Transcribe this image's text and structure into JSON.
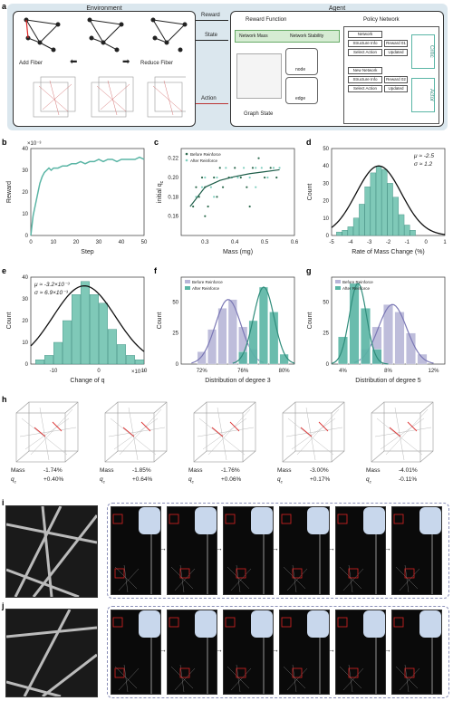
{
  "panel_labels": [
    "a",
    "b",
    "c",
    "d",
    "e",
    "f",
    "g",
    "h",
    "i",
    "j"
  ],
  "env": {
    "title": "Environment",
    "add": "Add Fiber",
    "reduce": "Reduce Fiber"
  },
  "agent": {
    "title": "Agent",
    "reward_fn": "Reward Function",
    "policy": "Policy Network",
    "net_mass": "Network Mass",
    "net_stab": "Network Stability",
    "graph_state": "Graph State",
    "node": "node",
    "edge": "edge",
    "critic": "Critic",
    "actor": "Actor",
    "chips": [
      "Network",
      "Structure Info",
      "Reward 01",
      "Select Action",
      "Updated",
      "New Network",
      "Structure Info",
      "Reward 02",
      "Select Action",
      "Updated"
    ]
  },
  "arrows": {
    "reward": "Reward",
    "state": "State",
    "action": "Action"
  },
  "chart_data": [
    {
      "type": "line",
      "panel": "b",
      "xlabel": "Step",
      "ylabel": "Reward",
      "scale_note": "×10⁻³",
      "xlim": [
        0,
        50
      ],
      "ylim": [
        0,
        40
      ],
      "xticks": [
        "0",
        "10",
        "20",
        "30",
        "40",
        "50"
      ],
      "yticks": [
        "0",
        "10",
        "20",
        "30",
        "40"
      ],
      "x": [
        0,
        1,
        2,
        3,
        4,
        5,
        6,
        7,
        8,
        9,
        10,
        12,
        14,
        16,
        18,
        20,
        22,
        24,
        26,
        28,
        30,
        32,
        34,
        36,
        38,
        40,
        42,
        44,
        46,
        48,
        50
      ],
      "y": [
        0,
        9,
        14,
        19,
        24,
        27,
        29,
        30,
        31,
        30,
        31,
        31,
        32,
        32,
        33,
        33,
        34,
        33,
        34,
        34,
        35,
        34,
        35,
        35,
        34,
        35,
        35,
        35,
        35,
        36,
        35
      ],
      "color": "#5ab5a5"
    },
    {
      "type": "scatter",
      "panel": "c",
      "xlabel": "Mass (mg)",
      "ylabel": "initial q",
      "ylabel_sub": "c",
      "xlim": [
        0.22,
        0.6
      ],
      "ylim": [
        0.14,
        0.23
      ],
      "xticks": [
        "0.3",
        "0.4",
        "0.5",
        "0.6"
      ],
      "yticks": [
        "0.16",
        "0.18",
        "0.20",
        "0.22"
      ],
      "legend": [
        "Before Reinforce",
        "After Reinforce"
      ],
      "fit": {
        "x": [
          0.25,
          0.3,
          0.35,
          0.4,
          0.45,
          0.5,
          0.55
        ],
        "y": [
          0.17,
          0.19,
          0.197,
          0.201,
          0.204,
          0.206,
          0.208
        ]
      },
      "series": [
        {
          "name": "Before Reinforce",
          "color": "#2e6b4f",
          "points": [
            [
              0.26,
              0.17
            ],
            [
              0.27,
              0.19
            ],
            [
              0.28,
              0.18
            ],
            [
              0.29,
              0.2
            ],
            [
              0.3,
              0.19
            ],
            [
              0.31,
              0.17
            ],
            [
              0.33,
              0.2
            ],
            [
              0.34,
              0.18
            ],
            [
              0.35,
              0.21
            ],
            [
              0.36,
              0.19
            ],
            [
              0.38,
              0.2
            ],
            [
              0.4,
              0.21
            ],
            [
              0.42,
              0.2
            ],
            [
              0.44,
              0.19
            ],
            [
              0.46,
              0.21
            ],
            [
              0.48,
              0.22
            ],
            [
              0.5,
              0.2
            ],
            [
              0.52,
              0.21
            ],
            [
              0.54,
              0.2
            ],
            [
              0.3,
              0.16
            ],
            [
              0.45,
              0.17
            ]
          ]
        },
        {
          "name": "After Reinforce",
          "color": "#7fcfbf",
          "points": [
            [
              0.27,
              0.18
            ],
            [
              0.29,
              0.19
            ],
            [
              0.3,
              0.2
            ],
            [
              0.32,
              0.19
            ],
            [
              0.34,
              0.2
            ],
            [
              0.37,
              0.21
            ],
            [
              0.39,
              0.2
            ],
            [
              0.41,
              0.2
            ],
            [
              0.43,
              0.21
            ],
            [
              0.45,
              0.2
            ],
            [
              0.47,
              0.21
            ],
            [
              0.49,
              0.21
            ],
            [
              0.51,
              0.2
            ],
            [
              0.53,
              0.21
            ],
            [
              0.55,
              0.21
            ],
            [
              0.33,
              0.18
            ],
            [
              0.47,
              0.19
            ]
          ]
        }
      ]
    },
    {
      "type": "bar",
      "panel": "d",
      "xlabel": "Rate of Mass Change (%)",
      "ylabel": "Count",
      "xlim": [
        -5,
        1
      ],
      "ylim": [
        0,
        50
      ],
      "xticks": [
        "-5",
        "-4",
        "-3",
        "-2",
        "-1",
        "0",
        "1"
      ],
      "yticks": [
        "0",
        "10",
        "20",
        "30",
        "40",
        "50"
      ],
      "annotation": [
        "μ ≈ -2.5",
        "σ ≈ 1.2"
      ],
      "bins": [
        -4.6,
        -4.3,
        -4.0,
        -3.7,
        -3.4,
        -3.1,
        -2.8,
        -2.5,
        -2.2,
        -1.9,
        -1.6,
        -1.3,
        -1.0,
        -0.7
      ],
      "values": [
        2,
        3,
        5,
        10,
        18,
        28,
        36,
        40,
        38,
        30,
        22,
        12,
        6,
        3
      ],
      "curve": {
        "mu": -2.5,
        "sigma": 1.2,
        "peak": 40
      }
    },
    {
      "type": "bar",
      "panel": "e",
      "xlabel": "Change of q",
      "xlabel_sub": "c",
      "ylabel": "Count",
      "scale_note": "×10⁻³",
      "xlim": [
        -15,
        10
      ],
      "ylim": [
        0,
        40
      ],
      "xticks": [
        "-10",
        "0",
        "10"
      ],
      "yticks": [
        "0",
        "10",
        "20",
        "30",
        "40"
      ],
      "annotation": [
        "μ ≈ -3.2×10⁻³",
        "σ ≈ 6.9×10⁻³"
      ],
      "bins": [
        -13,
        -11,
        -9,
        -7,
        -5,
        -3,
        -1,
        1,
        3,
        5,
        7,
        9
      ],
      "values": [
        2,
        4,
        10,
        20,
        32,
        38,
        32,
        28,
        16,
        9,
        4,
        2
      ],
      "curve": {
        "mu": -3.2,
        "sigma": 6.9,
        "peak": 36
      }
    },
    {
      "type": "bar",
      "panel": "f",
      "xlabel": "Distribution of degree 3",
      "ylabel": "Count",
      "xlim": [
        70,
        81
      ],
      "ylim": [
        0,
        70
      ],
      "xticks": [
        "72%",
        "76%",
        "80%"
      ],
      "yticks": [
        "0",
        "25",
        "50"
      ],
      "legend": [
        "Before Reinforce",
        "After Reinforce"
      ],
      "series": [
        {
          "name": "Before Reinforce",
          "color": "#b8b6d8",
          "bins": [
            72,
            73,
            74,
            75,
            76,
            77
          ],
          "values": [
            10,
            28,
            45,
            52,
            30,
            12
          ]
        },
        {
          "name": "After Reinforce",
          "color": "#5ab5a5",
          "bins": [
            76,
            77,
            78,
            79,
            80
          ],
          "values": [
            10,
            35,
            62,
            42,
            8
          ]
        }
      ]
    },
    {
      "type": "bar",
      "panel": "g",
      "xlabel": "Distribution of degree 5",
      "ylabel": "Count",
      "xlim": [
        3,
        13
      ],
      "ylim": [
        0,
        70
      ],
      "xticks": [
        "4%",
        "8%",
        "12%"
      ],
      "yticks": [
        "0",
        "25",
        "50"
      ],
      "legend": [
        "Before Reinforce",
        "After Reinforce"
      ],
      "series": [
        {
          "name": "Before Reinforce",
          "color": "#b8b6d8",
          "bins": [
            6,
            7,
            8,
            9,
            10,
            11
          ],
          "values": [
            12,
            30,
            48,
            42,
            25,
            8
          ]
        },
        {
          "name": "After Reinforce",
          "color": "#5ab5a5",
          "bins": [
            4,
            5,
            6,
            7
          ],
          "values": [
            22,
            65,
            45,
            12
          ]
        }
      ]
    }
  ],
  "panel_h": {
    "row_label_mass": "Mass",
    "row_label_q": "q",
    "row_label_q_sub": "c",
    "items": [
      {
        "mass": "-1.74%",
        "qc": "+0.40%"
      },
      {
        "mass": "-1.85%",
        "qc": "+0.64%"
      },
      {
        "mass": "-1.76%",
        "qc": "+0.06%"
      },
      {
        "mass": "-3.00%",
        "qc": "+0.17%"
      },
      {
        "mass": "-4.01%",
        "qc": "-0.11%"
      }
    ]
  }
}
